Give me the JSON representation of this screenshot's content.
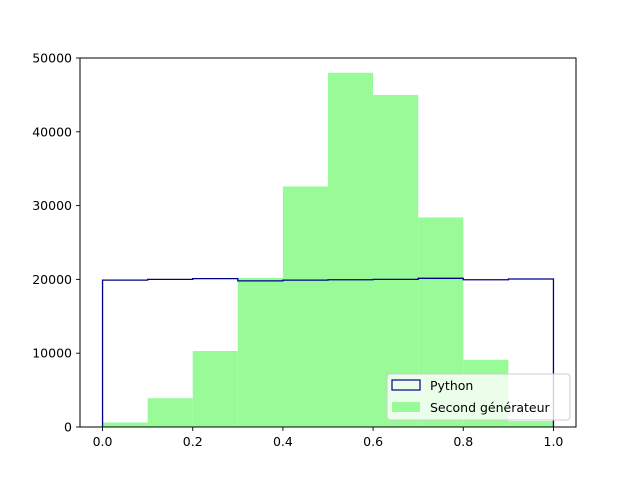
{
  "chart_data": {
    "type": "histogram",
    "bin_edges": [
      0.0,
      0.1,
      0.2,
      0.3,
      0.4,
      0.5,
      0.6,
      0.7,
      0.8,
      0.9,
      1.0
    ],
    "xlim": [
      -0.05,
      1.05
    ],
    "ylim": [
      0,
      50000
    ],
    "x_ticks": [
      0.0,
      0.2,
      0.4,
      0.6,
      0.8,
      1.0
    ],
    "x_tick_labels": [
      "0.0",
      "0.2",
      "0.4",
      "0.6",
      "0.8",
      "1.0"
    ],
    "y_ticks": [
      0,
      10000,
      20000,
      30000,
      40000,
      50000
    ],
    "y_tick_labels": [
      "0",
      "10000",
      "20000",
      "30000",
      "40000",
      "50000"
    ],
    "legend_position": "lower-right",
    "series": [
      {
        "name": "Python",
        "style": "step",
        "color": "#00008b",
        "values": [
          19900,
          20000,
          20100,
          19800,
          19900,
          19950,
          20000,
          20150,
          19950,
          20050
        ]
      },
      {
        "name": "Second générateur",
        "style": "filled",
        "color": "#98fb98",
        "values": [
          600,
          3900,
          10300,
          20200,
          32600,
          48000,
          45000,
          28400,
          9100,
          800
        ]
      }
    ]
  }
}
